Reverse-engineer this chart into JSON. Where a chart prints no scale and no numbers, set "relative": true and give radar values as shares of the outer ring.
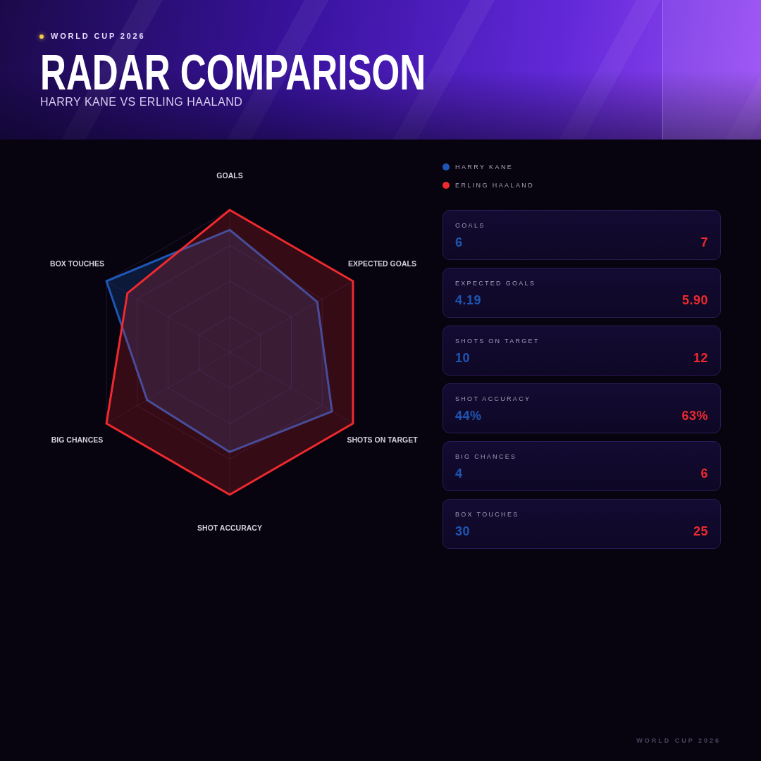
{
  "chart_data": [
    {
      "type": "radar",
      "title": "RADAR COMPARISON",
      "subtitle": "HARRY KANE VS ERLING HAALAND",
      "annotations": [
        "WORLD CUP 2026",
        "WORLD CUP 2026"
      ],
      "categories": [
        "GOALS",
        "EXPECTED GOALS",
        "SHOTS ON TARGET",
        "SHOT ACCURACY",
        "BIG CHANCES",
        "BOX TOUCHES"
      ],
      "relative": true,
      "grid": true,
      "legend": "top right",
      "series": [
        {
          "name": "HARRY KANE",
          "color": "#1e56b4",
          "values": [
            0.86,
            0.71,
            0.83,
            0.7,
            0.67,
            1
          ]
        },
        {
          "name": "ERLING HAALAND",
          "color": "#ee2a2e",
          "values": [
            1,
            1,
            1,
            1,
            1,
            0.83
          ]
        }
      ]
    },
    {
      "type": "other",
      "categories": [
        "GOALS",
        "EXPECTED GOALS",
        "SHOTS ON TARGET",
        "SHOT ACCURACY",
        "BIG CHANCES",
        "BOX TOUCHES"
      ],
      "series": [
        {
          "color": "#1e56b4",
          "values": [
            6,
            4.19,
            10,
            44,
            4,
            30
          ],
          "value_labels": [
            "6",
            "4.19",
            "10",
            "44%",
            "4",
            "30"
          ]
        },
        {
          "color": "#ee2a2e",
          "values": [
            7,
            5.9,
            12,
            63,
            6,
            25
          ],
          "value_labels": [
            "7",
            "5.90",
            "12",
            "63%",
            "6",
            "25"
          ]
        }
      ]
    }
  ]
}
